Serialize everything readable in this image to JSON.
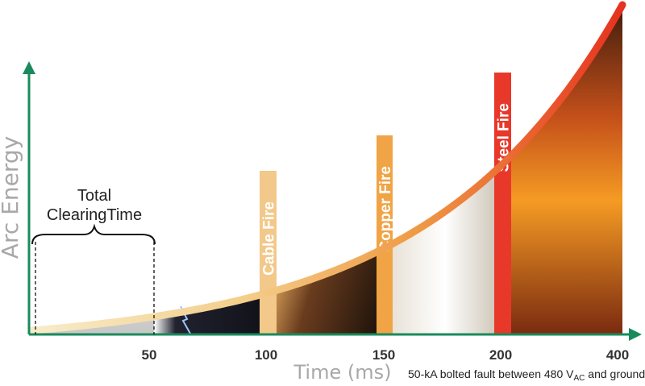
{
  "chart_data": {
    "type": "area",
    "ylabel": "Arc Energy",
    "xlabel": "Time (ms)",
    "x_ticks": [
      "50",
      "100",
      "150",
      "200",
      "400"
    ],
    "bands": [
      {
        "name": "Cable Fire",
        "x": 100,
        "color": "#f2c98a"
      },
      {
        "name": "Copper Fire",
        "x": 150,
        "color": "#f0a446"
      },
      {
        "name": "Steel Fire",
        "x": 200,
        "color": "#e8382a"
      }
    ],
    "annotation": {
      "line1": "Total",
      "line2": "ClearingTime",
      "range": [
        0,
        50
      ]
    },
    "note": {
      "prefix": "50-kA bolted fault between 480 V",
      "sub": "AC",
      "suffix": " and ground"
    },
    "axis_color": "#1a8a5c",
    "curve_colors": [
      "#f7e9c2",
      "#f3c27a",
      "#ee8a3a",
      "#e63425"
    ]
  }
}
